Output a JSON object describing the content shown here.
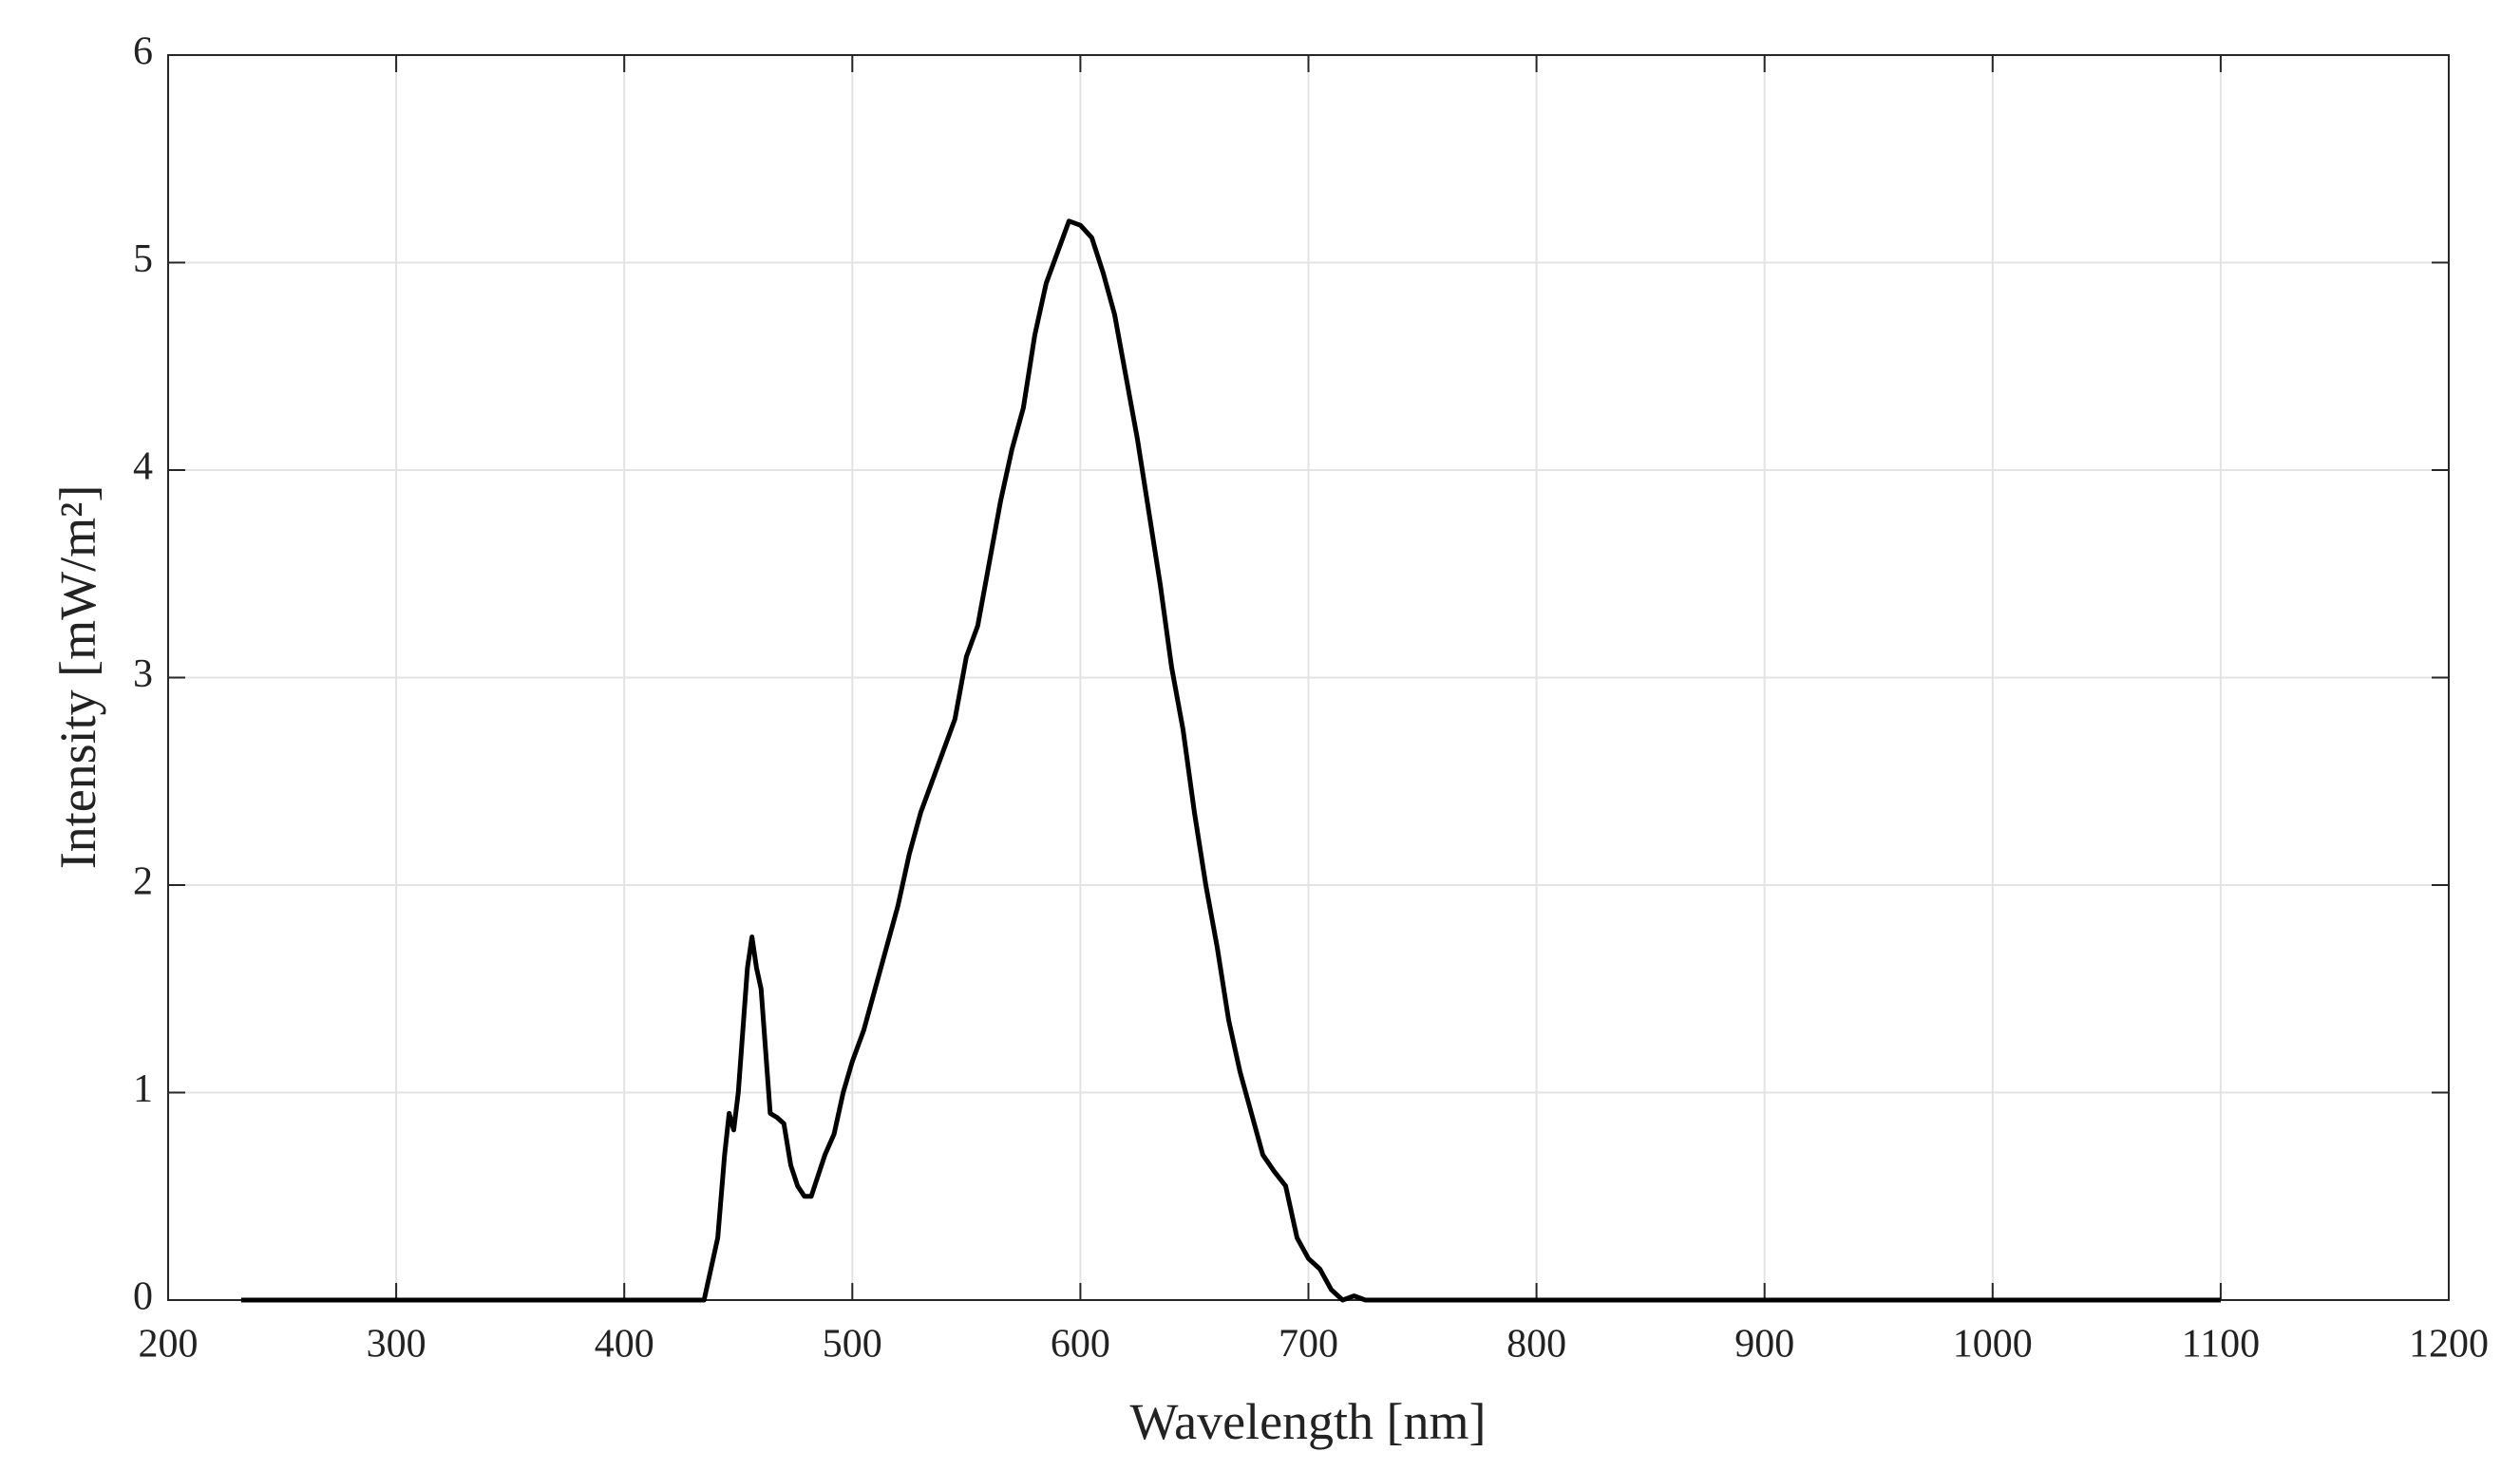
{
  "chart_data": {
    "type": "line",
    "xlabel": "Wavelength [nm]",
    "ylabel": "Intensity [mW/m²]",
    "xlim": [
      200,
      1200
    ],
    "xticks": [
      200,
      300,
      400,
      500,
      600,
      700,
      800,
      900,
      1000,
      1100,
      1200
    ],
    "ylim": [
      0,
      6
    ],
    "yticks": [
      0,
      1,
      2,
      3,
      4,
      5,
      6
    ],
    "grid": true,
    "series": [
      {
        "color": "#000000",
        "x": [
          232,
          435,
          438,
          441,
          444,
          446,
          448,
          450,
          452,
          454,
          456,
          458,
          460,
          462,
          464,
          467,
          470,
          473,
          476,
          479,
          482,
          485,
          488,
          492,
          496,
          500,
          505,
          510,
          515,
          520,
          525,
          530,
          535,
          540,
          545,
          550,
          555,
          560,
          565,
          570,
          575,
          580,
          585,
          590,
          595,
          600,
          605,
          610,
          615,
          620,
          625,
          630,
          635,
          640,
          645,
          650,
          655,
          660,
          665,
          670,
          675,
          680,
          685,
          690,
          695,
          700,
          705,
          710,
          715,
          720,
          725,
          1100
        ],
        "values": [
          0,
          0,
          0.15,
          0.3,
          0.7,
          0.9,
          0.82,
          1.0,
          1.3,
          1.6,
          1.75,
          1.6,
          1.5,
          1.2,
          0.9,
          0.88,
          0.85,
          0.65,
          0.55,
          0.5,
          0.5,
          0.6,
          0.7,
          0.8,
          1.0,
          1.15,
          1.3,
          1.5,
          1.7,
          1.9,
          2.15,
          2.35,
          2.5,
          2.65,
          2.8,
          3.1,
          3.25,
          3.55,
          3.85,
          4.1,
          4.3,
          4.65,
          4.9,
          5.05,
          5.2,
          5.18,
          5.12,
          4.95,
          4.75,
          4.45,
          4.15,
          3.8,
          3.45,
          3.05,
          2.75,
          2.35,
          2.0,
          1.7,
          1.35,
          1.1,
          0.9,
          0.7,
          0.62,
          0.55,
          0.3,
          0.2,
          0.15,
          0.05,
          0,
          0.02,
          0,
          0
        ]
      }
    ]
  }
}
